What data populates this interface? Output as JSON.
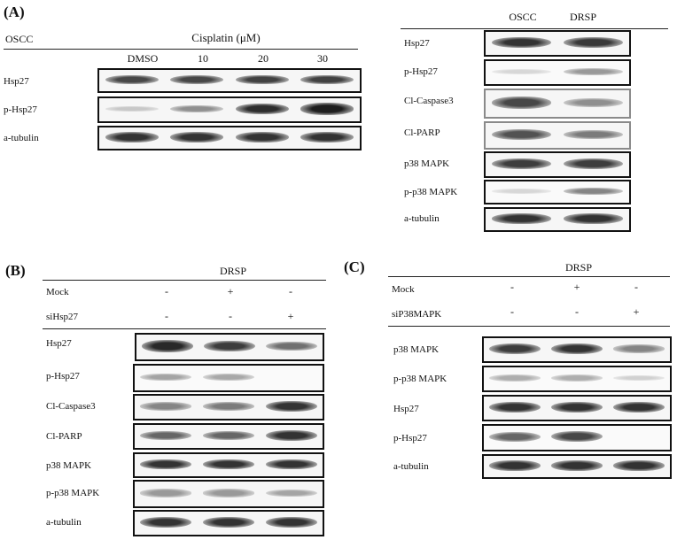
{
  "panels": {
    "A": {
      "letter": "(A)",
      "left": {
        "cell_line": "OSCC",
        "treatment": "Cisplatin (μM)",
        "doses": [
          "DMSO",
          "10",
          "20",
          "30"
        ],
        "rows": [
          {
            "label": "Hsp27",
            "intensity": [
              0.75,
              0.75,
              0.78,
              0.78
            ]
          },
          {
            "label": "p-Hsp27",
            "intensity": [
              0.12,
              0.4,
              0.88,
              0.95
            ]
          },
          {
            "label": "a-tubulin",
            "intensity": [
              0.85,
              0.85,
              0.85,
              0.85
            ]
          }
        ]
      },
      "right": {
        "columns": [
          "OSCC",
          "DRSP"
        ],
        "rows": [
          {
            "label": "Hsp27",
            "intensity": [
              0.85,
              0.82
            ]
          },
          {
            "label": "p-Hsp27",
            "intensity": [
              0.05,
              0.35
            ]
          },
          {
            "label": "Cl-Caspase3",
            "intensity": [
              0.75,
              0.4
            ]
          },
          {
            "label": "Cl-PARP",
            "intensity": [
              0.7,
              0.5
            ]
          },
          {
            "label": "p38 MAPK",
            "intensity": [
              0.8,
              0.8
            ]
          },
          {
            "label": "p-p38 MAPK",
            "intensity": [
              0.05,
              0.45
            ]
          },
          {
            "label": "a-tubulin",
            "intensity": [
              0.85,
              0.85
            ]
          }
        ]
      }
    },
    "B": {
      "letter": "(B)",
      "title": "DRSP",
      "conditions": [
        {
          "label": "Mock",
          "values": [
            "-",
            "+",
            "-"
          ]
        },
        {
          "label": "siHsp27",
          "values": [
            "-",
            "-",
            "+"
          ]
        }
      ],
      "rows": [
        {
          "label": "Hsp27",
          "intensity": [
            0.9,
            0.8,
            0.55
          ]
        },
        {
          "label": "p-Hsp27",
          "intensity": [
            0.3,
            0.28,
            0.0
          ]
        },
        {
          "label": "Cl-Caspase3",
          "intensity": [
            0.45,
            0.5,
            0.85
          ]
        },
        {
          "label": "Cl-PARP",
          "intensity": [
            0.6,
            0.6,
            0.85
          ]
        },
        {
          "label": "p38 MAPK",
          "intensity": [
            0.85,
            0.85,
            0.85
          ]
        },
        {
          "label": "p-p38 MAPK",
          "intensity": [
            0.35,
            0.35,
            0.3
          ]
        },
        {
          "label": "a-tubulin",
          "intensity": [
            0.85,
            0.85,
            0.85
          ]
        }
      ]
    },
    "C": {
      "letter": "(C)",
      "title": "DRSP",
      "conditions": [
        {
          "label": "Mock",
          "values": [
            "-",
            "+",
            "-"
          ]
        },
        {
          "label": "siP38MAPK",
          "values": [
            "-",
            "-",
            "+"
          ]
        }
      ],
      "rows": [
        {
          "label": "p38 MAPK",
          "intensity": [
            0.8,
            0.85,
            0.45
          ]
        },
        {
          "label": "p-p38 MAPK",
          "intensity": [
            0.25,
            0.25,
            0.08
          ]
        },
        {
          "label": "Hsp27",
          "intensity": [
            0.85,
            0.85,
            0.85
          ]
        },
        {
          "label": "p-Hsp27",
          "intensity": [
            0.6,
            0.75,
            0.0
          ]
        },
        {
          "label": "a-tubulin",
          "intensity": [
            0.85,
            0.85,
            0.85
          ]
        }
      ]
    }
  }
}
